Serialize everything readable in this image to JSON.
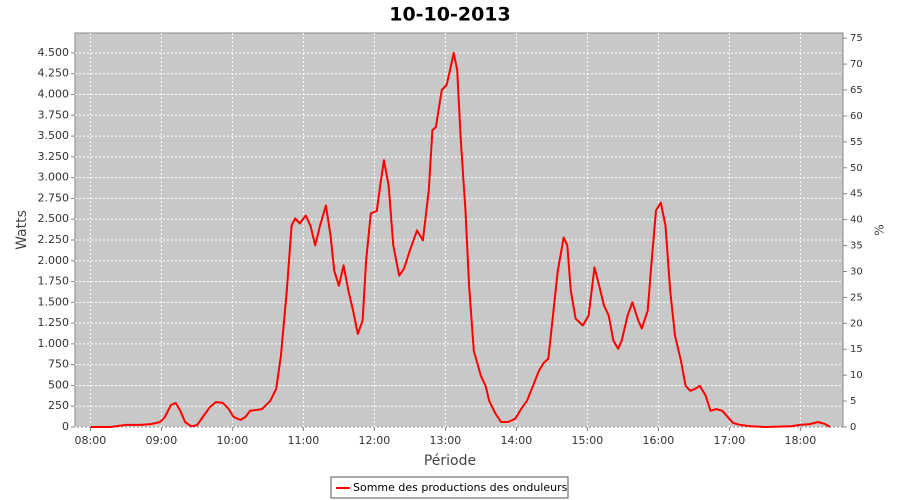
{
  "chart_data": {
    "type": "line",
    "title": "10-10-2013",
    "x_label": "Période",
    "y_label": "Watts",
    "y2_label": "%",
    "grid": true,
    "legend": "bottom",
    "x": [
      "08:00",
      "08:17",
      "08:30",
      "08:42",
      "08:51",
      "08:59",
      "09:03",
      "09:08",
      "09:12",
      "09:16",
      "09:20",
      "09:25",
      "09:30",
      "09:35",
      "09:41",
      "09:46",
      "09:52",
      "09:57",
      "10:01",
      "10:07",
      "10:11",
      "10:15",
      "10:20",
      "10:25",
      "10:32",
      "10:37",
      "10:41",
      "10:46",
      "10:50",
      "10:53",
      "10:57",
      "11:02",
      "11:06",
      "11:10",
      "11:14",
      "11:19",
      "11:23",
      "11:26",
      "11:30",
      "11:34",
      "11:38",
      "11:42",
      "11:46",
      "11:50",
      "11:53",
      "11:57",
      "12:02",
      "12:05",
      "12:08",
      "12:12",
      "12:16",
      "12:21",
      "12:25",
      "12:30",
      "12:36",
      "12:41",
      "12:46",
      "12:49",
      "12:52",
      "12:57",
      "13:01",
      "13:04",
      "13:07",
      "13:10",
      "13:13",
      "13:17",
      "13:20",
      "13:24",
      "13:30",
      "13:34",
      "13:37",
      "13:42",
      "13:47",
      "13:53",
      "13:59",
      "14:04",
      "14:09",
      "14:14",
      "14:19",
      "14:23",
      "14:27",
      "14:30",
      "14:35",
      "14:40",
      "14:43",
      "14:46",
      "14:50",
      "14:56",
      "15:01",
      "15:06",
      "15:10",
      "15:14",
      "15:18",
      "15:22",
      "15:26",
      "15:29",
      "15:34",
      "15:38",
      "15:43",
      "15:46",
      "15:51",
      "15:54",
      "15:58",
      "16:02",
      "16:06",
      "16:10",
      "16:14",
      "16:19",
      "16:23",
      "16:27",
      "16:31",
      "16:35",
      "16:40",
      "16:44",
      "16:49",
      "16:54",
      "16:58",
      "17:03",
      "17:09",
      "17:18",
      "17:30",
      "17:52",
      "18:00",
      "18:08",
      "18:15",
      "18:21",
      "18:25"
    ],
    "series": [
      {
        "name": "Somme des productions des onduleurs",
        "color": "#ff0000",
        "values": [
          0,
          0,
          25,
          25,
          35,
          60,
          120,
          265,
          290,
          195,
          60,
          10,
          20,
          120,
          240,
          300,
          290,
          215,
          120,
          85,
          120,
          195,
          205,
          215,
          315,
          460,
          855,
          1640,
          2425,
          2510,
          2450,
          2545,
          2420,
          2185,
          2420,
          2665,
          2300,
          1880,
          1700,
          1945,
          1640,
          1400,
          1120,
          1280,
          2000,
          2570,
          2600,
          2910,
          3210,
          2910,
          2185,
          1820,
          1905,
          2125,
          2365,
          2245,
          2850,
          3570,
          3610,
          4055,
          4115,
          4295,
          4500,
          4295,
          3450,
          2600,
          1700,
          915,
          615,
          495,
          315,
          170,
          60,
          60,
          100,
          215,
          315,
          495,
          675,
          770,
          820,
          1220,
          1880,
          2280,
          2185,
          1640,
          1305,
          1220,
          1340,
          1920,
          1700,
          1460,
          1340,
          1040,
          940,
          1040,
          1340,
          1500,
          1280,
          1185,
          1400,
          1945,
          2605,
          2700,
          2420,
          1640,
          1100,
          800,
          495,
          435,
          460,
          495,
          375,
          195,
          215,
          195,
          130,
          50,
          25,
          10,
          0,
          10,
          25,
          35,
          60,
          35,
          0
        ]
      }
    ],
    "xlim": [
      "07:47",
      "18:36"
    ],
    "xticks": [
      "08:00",
      "09:00",
      "10:00",
      "11:00",
      "12:00",
      "13:00",
      "14:00",
      "15:00",
      "16:00",
      "17:00",
      "18:00"
    ],
    "ylim": [
      0,
      4740
    ],
    "yticks": [
      0,
      250,
      500,
      750,
      {
        "value": 1000,
        "label": "1.000"
      },
      {
        "value": 1250,
        "label": "1.250"
      },
      {
        "value": 1500,
        "label": "1.500"
      },
      {
        "value": 1750,
        "label": "1.750"
      },
      {
        "value": 2000,
        "label": "2.000"
      },
      {
        "value": 2250,
        "label": "2.250"
      },
      {
        "value": 2500,
        "label": "2.500"
      },
      {
        "value": 2750,
        "label": "2.750"
      },
      {
        "value": 3000,
        "label": "3.000"
      },
      {
        "value": 3250,
        "label": "3.250"
      },
      {
        "value": 3500,
        "label": "3.500"
      },
      {
        "value": 3750,
        "label": "3.750"
      },
      {
        "value": 4000,
        "label": "4.000"
      },
      {
        "value": 4250,
        "label": "4.250"
      },
      {
        "value": 4500,
        "label": "4.500"
      }
    ],
    "y2lim": [
      0,
      76
    ],
    "y2ticks": [
      0,
      5,
      10,
      15,
      20,
      25,
      30,
      35,
      40,
      45,
      50,
      55,
      60,
      65,
      70,
      75
    ]
  }
}
